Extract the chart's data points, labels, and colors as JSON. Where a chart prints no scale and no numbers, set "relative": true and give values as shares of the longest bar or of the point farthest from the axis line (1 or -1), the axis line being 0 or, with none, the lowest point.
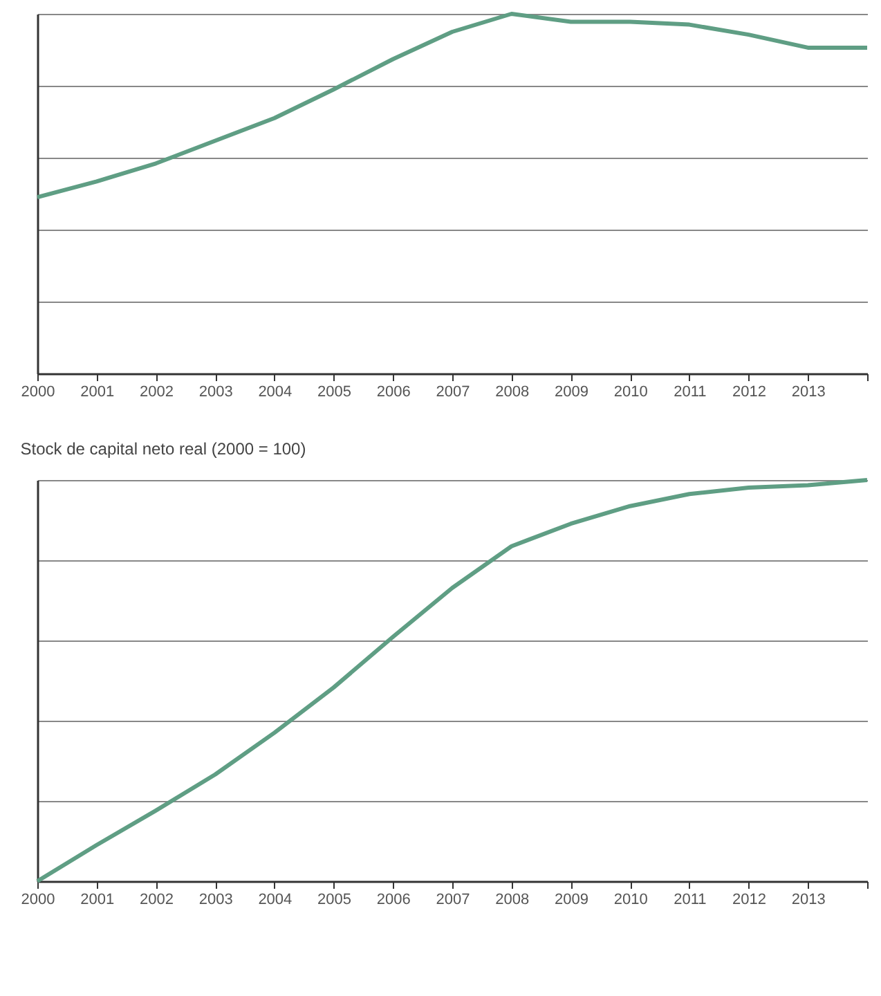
{
  "chart_data": [
    {
      "type": "line",
      "relative": true,
      "grid": "y",
      "categories": [
        "2000",
        "2001",
        "2002",
        "2003",
        "2004",
        "2005",
        "2006",
        "2007",
        "2008",
        "2009",
        "2010",
        "2011",
        "2012",
        "2013",
        null
      ],
      "series": [
        {
          "color": "#5f9e84",
          "values": [
            0.49,
            0.534,
            0.584,
            0.647,
            0.71,
            0.79,
            0.874,
            0.95,
            1,
            0.978,
            0.978,
            0.97,
            0.942,
            0.906,
            0.906
          ]
        }
      ]
    },
    {
      "type": "line",
      "relative": true,
      "grid": "y",
      "title": "Stock de capital neto real (2000 = 100)",
      "categories": [
        "2000",
        "2001",
        "2002",
        "2003",
        "2004",
        "2005",
        "2006",
        "2007",
        "2008",
        "2009",
        "2010",
        "2011",
        "2012",
        "2013",
        null
      ],
      "series": [
        {
          "color": "#5f9e84",
          "values": [
            0,
            0.09,
            0.176,
            0.266,
            0.37,
            0.483,
            0.609,
            0.731,
            0.835,
            0.891,
            0.935,
            0.965,
            0.981,
            0.987,
            1
          ]
        }
      ]
    }
  ]
}
